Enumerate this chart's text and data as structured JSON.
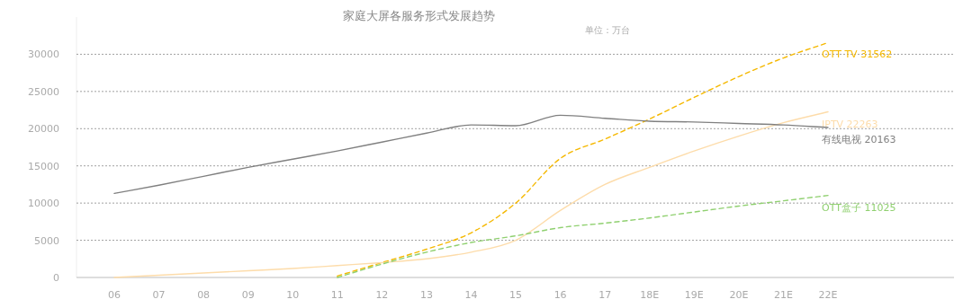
{
  "chart_data": {
    "type": "line",
    "title": "家庭大屏各服务形式发展趋势",
    "subtitle": "单位：万台",
    "categories": [
      "06",
      "07",
      "08",
      "09",
      "10",
      "11",
      "12",
      "13",
      "14",
      "15",
      "16",
      "17",
      "18E",
      "19E",
      "20E",
      "21E",
      "22E"
    ],
    "ylim": [
      0,
      35000
    ],
    "yticks": [
      0,
      5000,
      10000,
      15000,
      20000,
      25000,
      30000
    ],
    "grid": "y",
    "marker": "none",
    "series": [
      {
        "name": "OTT TV",
        "color": "#f5b800",
        "line_style": "dashed",
        "values": [
          null,
          null,
          null,
          null,
          null,
          200,
          2000,
          3800,
          6000,
          10000,
          16000,
          18600,
          21300,
          24200,
          27000,
          29500,
          31562
        ],
        "value_labels": [
          null,
          null,
          null,
          null,
          null,
          null,
          null,
          null,
          null,
          null,
          null,
          null,
          null,
          null,
          null,
          null,
          "31562"
        ]
      },
      {
        "name": "IPTV",
        "color": "#fddcaa",
        "line_style": "solid",
        "values": [
          0,
          300,
          600,
          900,
          1200,
          1600,
          2000,
          2500,
          3400,
          5000,
          9000,
          12500,
          14800,
          17000,
          19000,
          20800,
          22263
        ],
        "value_labels": [
          null,
          null,
          null,
          null,
          null,
          null,
          null,
          null,
          null,
          null,
          null,
          null,
          null,
          null,
          null,
          null,
          "22263"
        ]
      },
      {
        "name": "有线电视",
        "color": "#808080",
        "line_style": "solid",
        "values": [
          11300,
          12400,
          13600,
          14800,
          15900,
          17000,
          18200,
          19400,
          20500,
          20400,
          21800,
          21400,
          21000,
          20900,
          20700,
          20500,
          20163
        ],
        "value_labels": [
          null,
          null,
          null,
          null,
          null,
          null,
          null,
          null,
          null,
          null,
          null,
          null,
          null,
          null,
          null,
          null,
          "20163"
        ]
      },
      {
        "name": "OTT盒子",
        "color": "#90d070",
        "line_style": "dashed",
        "values": [
          null,
          null,
          null,
          null,
          null,
          0,
          1800,
          3400,
          4700,
          5600,
          6700,
          7300,
          8000,
          8800,
          9600,
          10300,
          11025
        ],
        "value_labels": [
          null,
          null,
          null,
          null,
          null,
          null,
          null,
          null,
          null,
          null,
          null,
          null,
          null,
          null,
          null,
          null,
          "11025"
        ]
      }
    ]
  }
}
